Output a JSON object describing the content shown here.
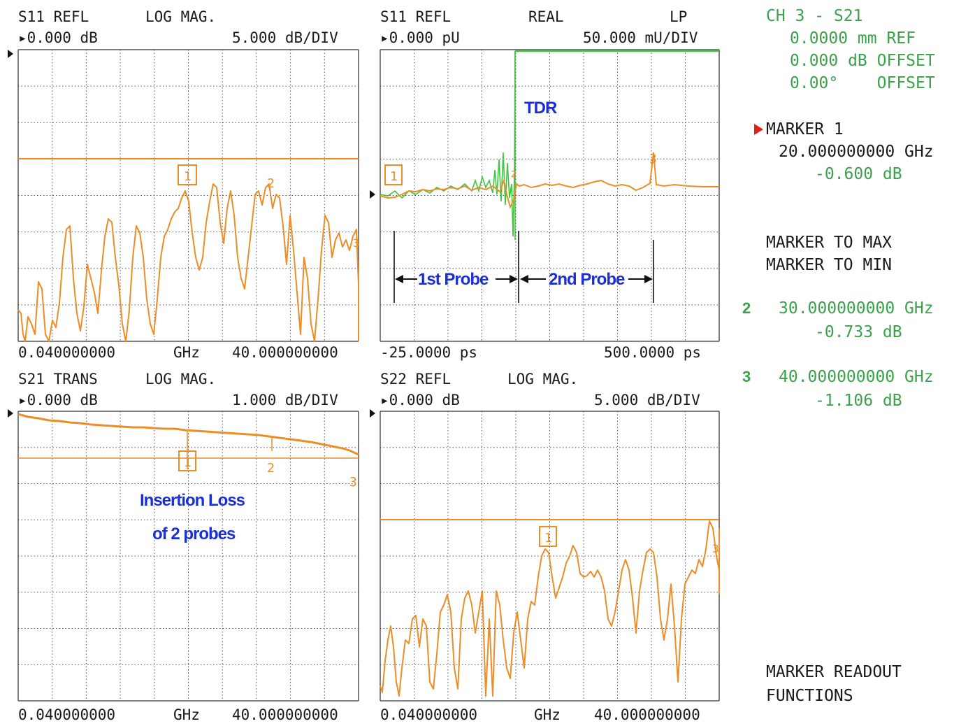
{
  "colors": {
    "trace": "#ec8d27",
    "trace_green": "#3ec63e",
    "readout_green": "#3aa24a",
    "annotation": "#1b2fd6",
    "grid": "#555555",
    "marker_arrow": "#e0201a"
  },
  "panels": [
    {
      "key": "s11_log",
      "title_left": "S11 REFL",
      "title_mid": "LOG MAG.",
      "title_right": "",
      "ref": "▸0.000 dB",
      "scale": "5.000 dB/DIV",
      "x_start": "0.040000000",
      "x_unit": "GHz",
      "x_stop": "40.000000000"
    },
    {
      "key": "s11_tdr",
      "title_left": "S11 REFL",
      "title_mid": "REAL",
      "title_right": "LP",
      "ref": "▸0.000 pU",
      "scale": "50.000 mU/DIV",
      "x_start": "-25.0000 ps",
      "x_unit": "",
      "x_stop": "500.0000 ps"
    },
    {
      "key": "s21_log",
      "title_left": "S21 TRANS",
      "title_mid": "LOG MAG.",
      "title_right": "",
      "ref": "▸0.000 dB",
      "scale": "1.000 dB/DIV",
      "x_start": "0.040000000",
      "x_unit": "GHz",
      "x_stop": "40.000000000"
    },
    {
      "key": "s22_log",
      "title_left": "S22 REFL",
      "title_mid": "LOG MAG.",
      "title_right": "",
      "ref": "▸0.000 dB",
      "scale": "5.000 dB/DIV",
      "x_start": "0.040000000",
      "x_unit": "GHz",
      "x_stop": "40.000000000"
    }
  ],
  "readout": {
    "channel": "CH 3 - S21",
    "ref_line": "0.0000 mm REF",
    "offset_db": "0.000 dB OFFSET",
    "offset_deg": "0.00°    OFFSET",
    "marker1_label": "MARKER 1",
    "marker1_freq": "20.000000000 GHz",
    "marker1_val": "-0.600 dB",
    "menu_max": "MARKER TO MAX",
    "menu_min": "MARKER TO MIN",
    "m2_num": "2",
    "m2_freq": "30.000000000 GHz",
    "m2_val": "-0.733 dB",
    "m3_num": "3",
    "m3_freq": "40.000000000 GHz",
    "m3_val": "-1.106 dB",
    "footer1": "MARKER READOUT",
    "footer2": "FUNCTIONS"
  },
  "annotations": {
    "tdr": "TDR",
    "probe1": "1st Probe",
    "probe2": "2nd Probe",
    "insertion1": "Insertion Loss",
    "insertion2": "of 2 probes"
  },
  "marker_labels": {
    "m1": "1",
    "m2": "2",
    "m3": "3"
  },
  "chart_data": [
    {
      "type": "line",
      "title": "S11 REFL LOG MAG.",
      "xlabel": "GHz",
      "x_range": [
        0.04,
        40
      ],
      "y_scale": "5.000 dB/DIV",
      "reference": "0.000 dB",
      "series": [
        {
          "x": [
            0.04,
            2,
            4,
            6,
            8,
            10,
            12,
            14,
            16,
            18,
            20,
            22,
            24,
            26,
            28,
            30,
            32,
            34,
            36,
            38,
            40
          ],
          "y": [
            -37,
            -33,
            -27,
            -30,
            -24,
            -28,
            -34,
            -28,
            -21,
            -19,
            -16,
            -20,
            -15,
            -19,
            -17,
            -15,
            -16,
            -26,
            -23,
            -26,
            -27
          ]
        }
      ],
      "markers": [
        {
          "id": "1",
          "x": 20
        },
        {
          "id": "2",
          "x": 30
        },
        {
          "id": "3",
          "x": 40
        }
      ]
    },
    {
      "type": "line",
      "title": "S11 REFL REAL LP",
      "xlabel": "ps",
      "x_range": [
        -25,
        500
      ],
      "y_scale": "50.000 mU/DIV",
      "reference": "0.000 pU",
      "series": [
        {
          "name": "",
          "x": [
            -25,
            0,
            25,
            50,
            75,
            100,
            125,
            150,
            175,
            185,
            190,
            210,
            250,
            300,
            350,
            400,
            450,
            500
          ],
          "y": [
            0,
            1,
            4,
            6,
            8,
            10,
            12,
            8,
            -10,
            10,
            20,
            22,
            24,
            21,
            27,
            17,
            25,
            24
          ]
        },
        {
          "name": "",
          "x": [
            -25,
            0,
            25,
            50,
            75,
            100,
            125,
            150,
            170,
            183,
            185,
            500
          ],
          "y": [
            0,
            2,
            3,
            6,
            10,
            8,
            14,
            -14,
            25,
            -120,
            400,
            400
          ]
        }
      ],
      "markers": [
        {
          "id": "1",
          "x": -5
        },
        {
          "id": "2",
          "x": 185
        },
        {
          "id": "3",
          "x": 400
        }
      ]
    },
    {
      "type": "line",
      "title": "S21 TRANS LOG MAG.",
      "xlabel": "GHz",
      "x_range": [
        0.04,
        40
      ],
      "y_scale": "1.000 dB/DIV",
      "reference": "0.000 dB",
      "series": [
        {
          "x": [
            0.04,
            5,
            10,
            15,
            20,
            25,
            30,
            35,
            40
          ],
          "y": [
            0,
            -0.15,
            -0.3,
            -0.42,
            -0.6,
            -0.66,
            -0.73,
            -0.85,
            -1.106
          ]
        }
      ],
      "markers": [
        {
          "id": "1",
          "x": 20,
          "y": -0.6
        },
        {
          "id": "2",
          "x": 30,
          "y": -0.733
        },
        {
          "id": "3",
          "x": 40,
          "y": -1.106
        }
      ]
    },
    {
      "type": "line",
      "title": "S22 REFL LOG MAG.",
      "xlabel": "GHz",
      "x_range": [
        0.04,
        40
      ],
      "y_scale": "5.000 dB/DIV",
      "reference": "0.000 dB",
      "series": [
        {
          "x": [
            0.04,
            2,
            4,
            6,
            8,
            10,
            12,
            14,
            16,
            18,
            20,
            22,
            24,
            26,
            28,
            30,
            32,
            34,
            36,
            38,
            40
          ],
          "y": [
            -42,
            -36,
            -37,
            -34,
            -30,
            -29,
            -30,
            -32,
            -30,
            -24,
            -16,
            -19,
            -15,
            -19,
            -17,
            -21,
            -17,
            -23,
            -19,
            -21,
            -13
          ]
        }
      ],
      "markers": [
        {
          "id": "1",
          "x": 20
        },
        {
          "id": "2",
          "x": 30
        },
        {
          "id": "3",
          "x": 40
        }
      ]
    }
  ]
}
